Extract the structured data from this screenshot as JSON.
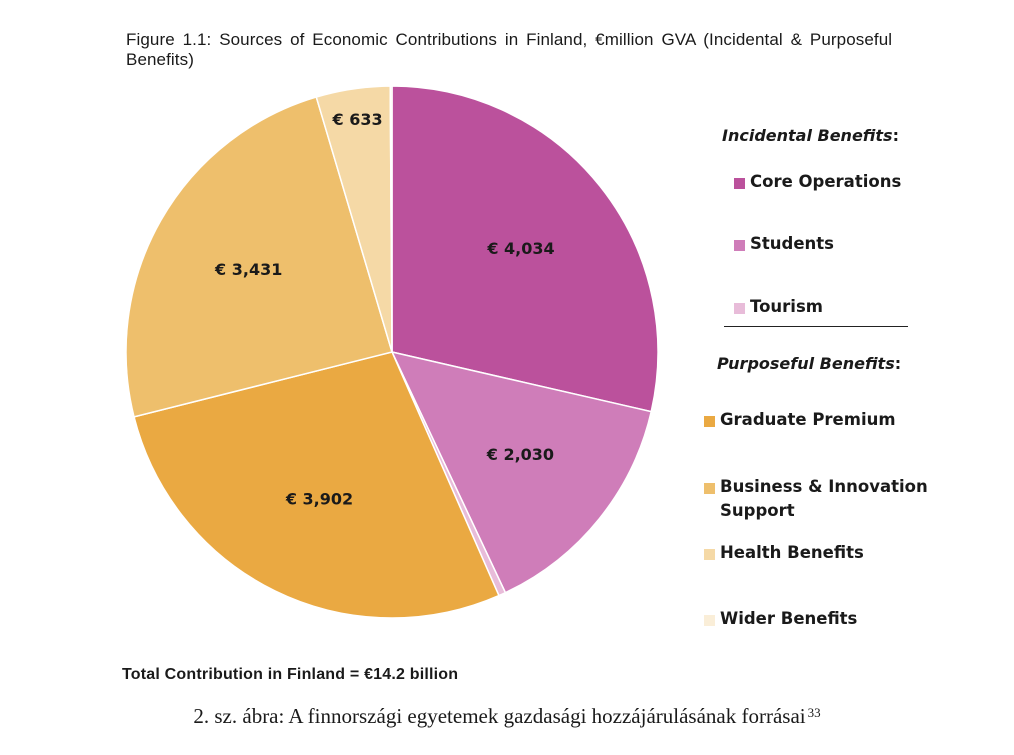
{
  "title": "Figure 1.1: Sources of Economic Contributions in Finland, €million GVA (Incidental & Purposeful Benefits)",
  "total": "Total Contribution in Finland = €14.2 billion",
  "caption": {
    "text": "2. sz. ábra: A finnországi egyetemek gazdasági hozzájárulásának forrásai",
    "footnote": "33"
  },
  "legend": {
    "incidental_heading": "Incidental Benefits",
    "purposeful_heading": "Purposeful Benefits",
    "colon": ":",
    "items": [
      {
        "label": "Core Operations",
        "color": "#bb519c"
      },
      {
        "label": "Students",
        "color": "#cf7db9"
      },
      {
        "label": "Tourism",
        "color": "#e8bcd9"
      },
      {
        "label": "Graduate Premium",
        "color": "#eaa942"
      },
      {
        "label": "Business & Innovation Support",
        "color": "#eebf6c"
      },
      {
        "label": "Health Benefits",
        "color": "#f5d9a6"
      },
      {
        "label": "Wider Benefits",
        "color": "#faeed8"
      }
    ]
  },
  "chart_data": {
    "type": "pie",
    "title": "Figure 1.1: Sources of Economic Contributions in Finland, €million GVA (Incidental & Purposeful Benefits)",
    "unit": "€million GVA",
    "slices": [
      {
        "name": "Core Operations",
        "value": 4034,
        "label": "€ 4,034",
        "color": "#bb519c"
      },
      {
        "name": "Students",
        "value": 2030,
        "label": "€ 2,030",
        "color": "#cf7db9"
      },
      {
        "name": "Tourism",
        "value": 60,
        "label": "",
        "color": "#e8bcd9"
      },
      {
        "name": "Graduate Premium",
        "value": 3902,
        "label": "€ 3,902",
        "color": "#eaa942"
      },
      {
        "name": "Business & Innovation Support",
        "value": 3431,
        "label": "€ 3,431",
        "color": "#eebf6c"
      },
      {
        "name": "Health Benefits",
        "value": 633,
        "label": "€ 633",
        "color": "#f5d9a6"
      },
      {
        "name": "Wider Benefits",
        "value": 15,
        "label": "",
        "color": "#faeed8"
      }
    ],
    "start": "12 o'clock",
    "direction": "clockwise",
    "legend_position": "right"
  }
}
